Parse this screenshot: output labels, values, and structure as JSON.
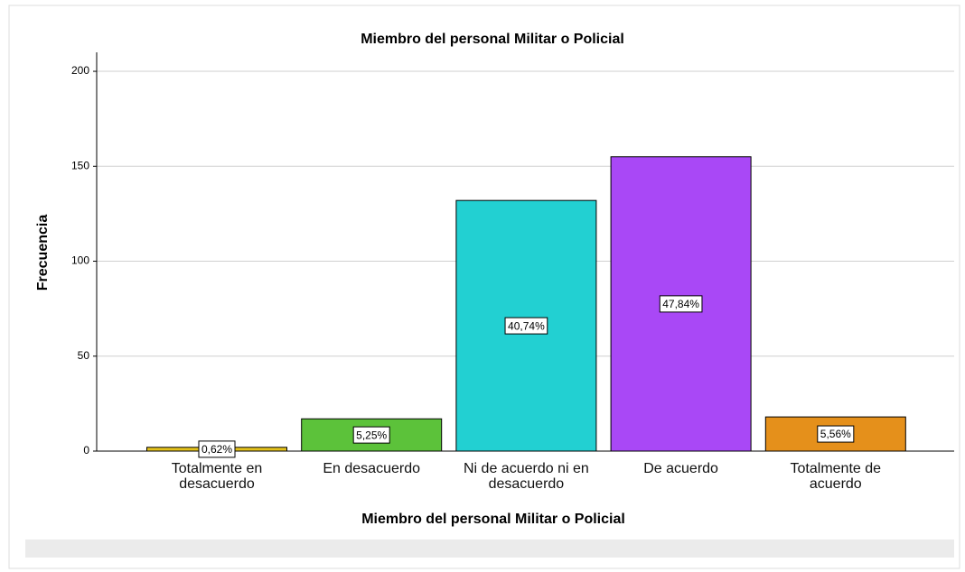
{
  "chart_data": {
    "type": "bar",
    "title": "Miembro del personal Militar o Policial",
    "xlabel": "Miembro del personal Militar o Policial",
    "ylabel": "Frecuencia",
    "categories": [
      "Totalmente en desacuerdo",
      "En desacuerdo",
      "Ni de acuerdo ni en desacuerdo",
      "De acuerdo",
      "Totalmente de acuerdo"
    ],
    "values": [
      2,
      17,
      132,
      155,
      18
    ],
    "value_labels": [
      "0,62%",
      "5,25%",
      "40,74%",
      "47,84%",
      "5,56%"
    ],
    "colors": [
      "#e3c21c",
      "#5cc23a",
      "#22d0d2",
      "#a948f6",
      "#e5901b"
    ],
    "ylim": [
      0,
      210
    ],
    "yticks": [
      0,
      50,
      100,
      150,
      200
    ],
    "grid": true
  }
}
